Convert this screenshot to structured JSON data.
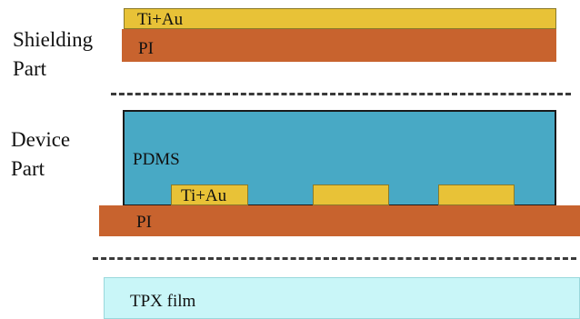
{
  "sections": {
    "shielding_label_line1": "Shielding",
    "shielding_label_line2": "Part",
    "device_label_line1": "Device",
    "device_label_line2": "Part"
  },
  "shielding_part": {
    "metal_label": "Ti+Au",
    "substrate_label": "PI"
  },
  "device_part": {
    "encapsulation_label": "PDMS",
    "electrode_label": "Ti+Au",
    "substrate_label": "PI"
  },
  "carrier": {
    "film_label": "TPX film"
  },
  "colors": {
    "gold": "#e8c237",
    "polyimide": "#c8632e",
    "pdms": "#48a9c5",
    "tpx": "#c9f6f8"
  }
}
